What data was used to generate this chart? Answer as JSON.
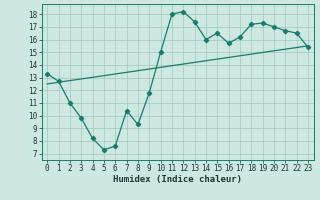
{
  "title": "",
  "xlabel": "Humidex (Indice chaleur)",
  "bg_color": "#cce8e0",
  "grid_color": "#a0c8c0",
  "line_color": "#1a7a6e",
  "x_data": [
    0,
    1,
    2,
    3,
    4,
    5,
    6,
    7,
    8,
    9,
    10,
    11,
    12,
    13,
    14,
    15,
    16,
    17,
    18,
    19,
    20,
    21,
    22,
    23
  ],
  "y_main": [
    13.3,
    12.7,
    11.0,
    9.8,
    8.2,
    7.3,
    7.6,
    10.4,
    9.3,
    11.8,
    15.0,
    18.0,
    18.2,
    17.4,
    16.0,
    16.5,
    15.7,
    16.2,
    17.2,
    17.3,
    17.0,
    16.7,
    16.5,
    15.4
  ],
  "y_trend_start": 12.5,
  "y_trend_end": 15.5,
  "ylim": [
    6.5,
    18.8
  ],
  "xlim": [
    -0.5,
    23.5
  ],
  "yticks": [
    7,
    8,
    9,
    10,
    11,
    12,
    13,
    14,
    15,
    16,
    17,
    18
  ],
  "xticks": [
    0,
    1,
    2,
    3,
    4,
    5,
    6,
    7,
    8,
    9,
    10,
    11,
    12,
    13,
    14,
    15,
    16,
    17,
    18,
    19,
    20,
    21,
    22,
    23
  ],
  "tick_fontsize": 5.5,
  "xlabel_fontsize": 6.5,
  "marker_size": 2.2,
  "line_width": 0.9
}
